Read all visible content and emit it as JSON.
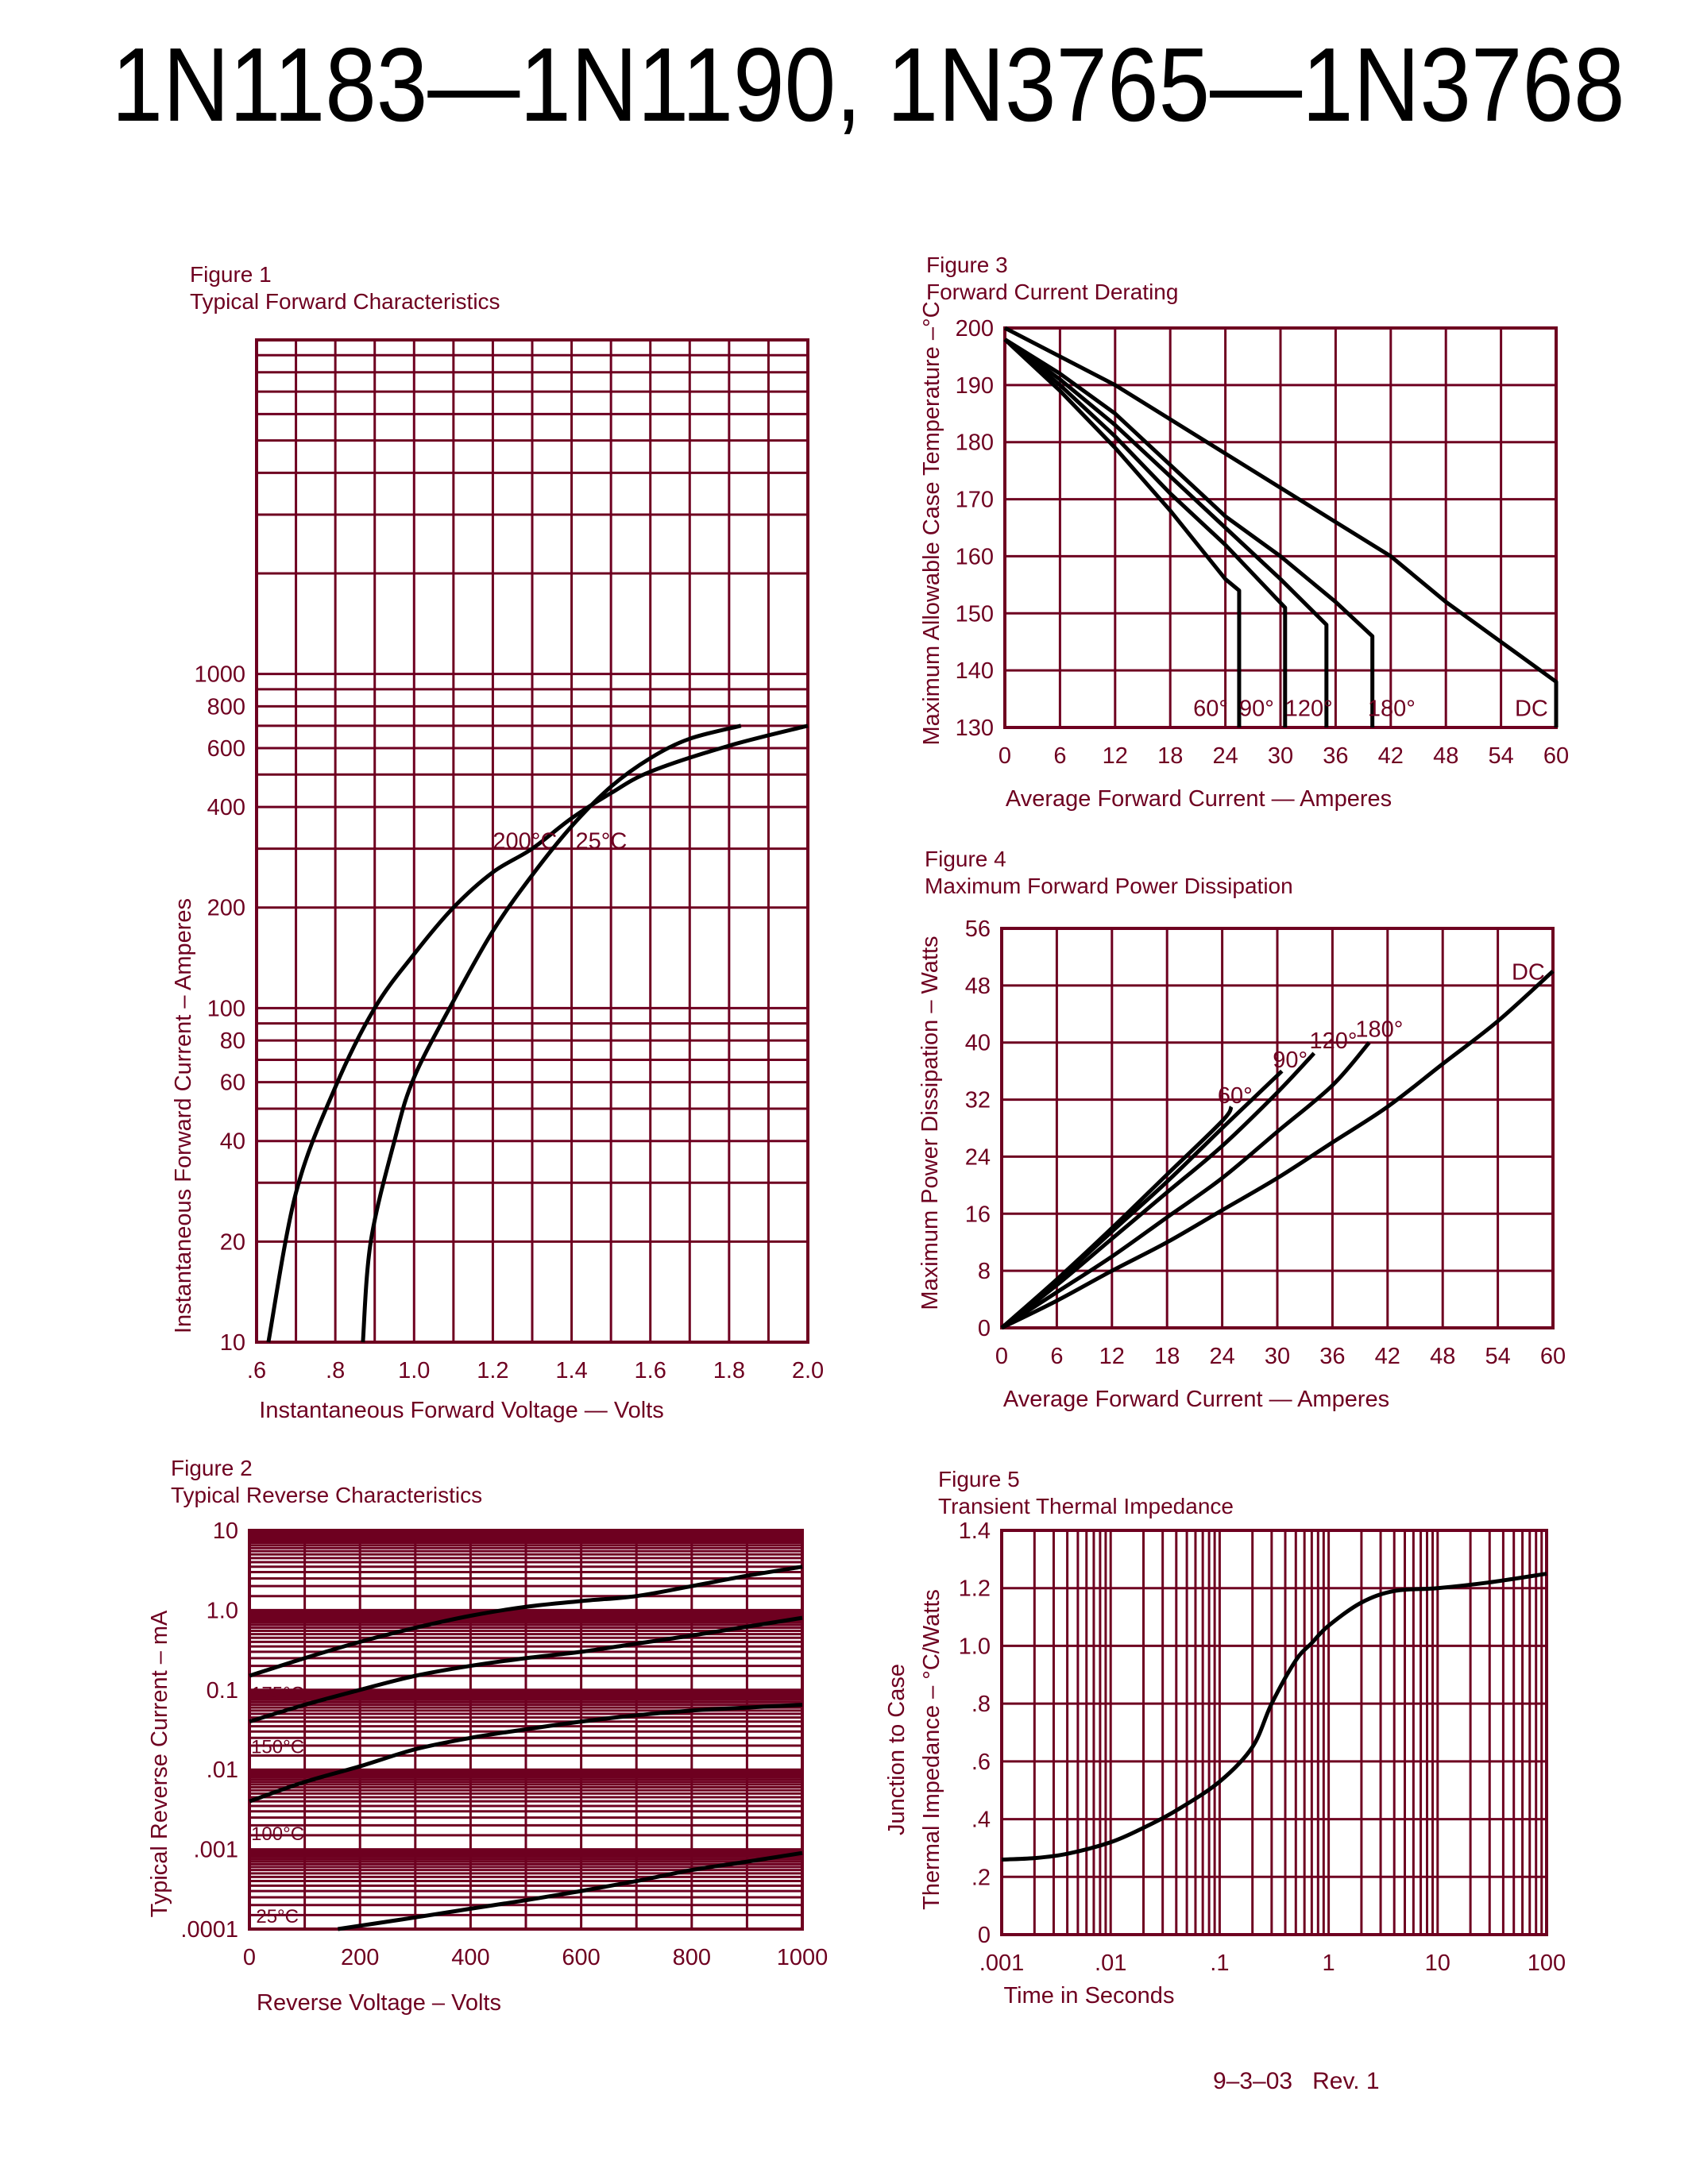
{
  "header": {
    "title": "1N1183—1N1190, 1N3765—1N3768"
  },
  "footer": {
    "revision": "9–3–03   Rev. 1"
  },
  "colors": {
    "grid": "#6e0020",
    "text": "#6e0020",
    "curve": "#000000"
  },
  "chart_data": [
    {
      "figure": "Figure 1",
      "title": "Typical Forward Characteristics",
      "type": "line",
      "xlabel": "Instantaneous Forward Voltage  —  Volts",
      "ylabel": [
        "Instantaneous Forward Current  –  Amperes"
      ],
      "xscale": "linear",
      "yscale": "log",
      "xlim": [
        0.6,
        2.0
      ],
      "ylim": [
        10,
        10000
      ],
      "grid": true,
      "xticks": [
        0.6,
        0.8,
        1.0,
        1.2,
        1.4,
        1.6,
        1.8,
        2.0
      ],
      "xtick_labels": [
        ".6",
        ".8",
        "1.0",
        "1.2",
        "1.4",
        "1.6",
        "1.8",
        "2.0"
      ],
      "yticks": [
        10,
        20,
        40,
        60,
        80,
        100,
        200,
        400,
        600,
        800,
        1000
      ],
      "ytick_labels": [
        "10",
        "20",
        "40",
        "60",
        "80",
        "100",
        "200",
        "400",
        "600",
        "800",
        "1000"
      ],
      "series": [
        {
          "name": "200°C",
          "x": [
            0.63,
            0.7,
            0.8,
            0.9,
            1.0,
            1.1,
            1.2,
            1.3,
            1.4,
            1.5,
            1.6,
            1.8,
            2.0
          ],
          "y": [
            10,
            28,
            58,
            100,
            145,
            200,
            255,
            300,
            370,
            440,
            510,
            610,
            700
          ],
          "label_at": [
            1.2,
            300
          ]
        },
        {
          "name": "25°C",
          "x": [
            0.87,
            0.89,
            0.95,
            1.0,
            1.1,
            1.2,
            1.3,
            1.4,
            1.5,
            1.6,
            1.7,
            1.83
          ],
          "y": [
            10,
            20,
            40,
            62,
            105,
            170,
            250,
            350,
            460,
            560,
            640,
            700
          ],
          "label_at": [
            1.41,
            300
          ]
        }
      ]
    },
    {
      "figure": "Figure 3",
      "title": "Forward Current Derating",
      "type": "line",
      "xlabel": "Average  Forward  Current  —  Amperes",
      "ylabel": [
        "Maximum Allowable Case Temperature –°C"
      ],
      "xscale": "linear",
      "yscale": "linear",
      "xlim": [
        0,
        60
      ],
      "ylim": [
        130,
        200
      ],
      "grid": true,
      "xticks": [
        0,
        6,
        12,
        18,
        24,
        30,
        36,
        42,
        48,
        54,
        60
      ],
      "xtick_labels": [
        "0",
        "6",
        "12",
        "18",
        "24",
        "30",
        "36",
        "42",
        "48",
        "54",
        "60"
      ],
      "yticks": [
        130,
        140,
        150,
        160,
        170,
        180,
        190,
        200
      ],
      "ytick_labels": [
        "130",
        "140",
        "150",
        "160",
        "170",
        "180",
        "190",
        "200"
      ],
      "series": [
        {
          "name": "60°",
          "x": [
            0,
            6,
            12,
            18,
            24,
            25.5,
            25.5
          ],
          "y": [
            198,
            189,
            179,
            168,
            156,
            154,
            130
          ],
          "label_at": [
            20.5,
            132
          ]
        },
        {
          "name": "90°",
          "x": [
            0,
            6,
            12,
            18,
            24,
            30.5,
            30.5
          ],
          "y": [
            198,
            190,
            181,
            171,
            162,
            151,
            130
          ],
          "label_at": [
            25.5,
            132
          ]
        },
        {
          "name": "120°",
          "x": [
            0,
            6,
            12,
            18,
            24,
            30,
            35,
            35
          ],
          "y": [
            198,
            191,
            183,
            174,
            165,
            156,
            148,
            130
          ],
          "label_at": [
            30.5,
            132
          ]
        },
        {
          "name": "180°",
          "x": [
            0,
            6,
            12,
            18,
            24,
            30,
            36,
            40,
            40
          ],
          "y": [
            198,
            192,
            185,
            176,
            167,
            160,
            152,
            146,
            130
          ],
          "label_at": [
            39.5,
            132
          ]
        },
        {
          "name": "DC",
          "x": [
            0,
            12,
            24,
            36,
            42,
            48,
            54,
            60,
            60
          ],
          "y": [
            200,
            190,
            178,
            166,
            160,
            152,
            145,
            138,
            130
          ],
          "label_at": [
            55.5,
            132
          ]
        }
      ]
    },
    {
      "figure": "Figure 4",
      "title": "Maximum Forward Power Dissipation",
      "type": "line",
      "xlabel": "Average  Forward  Current  —  Amperes",
      "ylabel": [
        "Maximum Power Dissipation  –  Watts"
      ],
      "xscale": "linear",
      "yscale": "linear",
      "xlim": [
        0,
        60
      ],
      "ylim": [
        0,
        56
      ],
      "grid": true,
      "xticks": [
        0,
        6,
        12,
        18,
        24,
        30,
        36,
        42,
        48,
        54,
        60
      ],
      "xtick_labels": [
        "0",
        "6",
        "12",
        "18",
        "24",
        "30",
        "36",
        "42",
        "48",
        "54",
        "60"
      ],
      "yticks": [
        0,
        8,
        16,
        24,
        32,
        40,
        48,
        56
      ],
      "ytick_labels": [
        "0",
        "8",
        "16",
        "24",
        "32",
        "40",
        "48",
        "56"
      ],
      "series": [
        {
          "name": "60°",
          "x": [
            0,
            6,
            12,
            18,
            24,
            25
          ],
          "y": [
            0,
            6.8,
            14,
            21.5,
            29,
            31
          ],
          "label_at": [
            23.5,
            31.5
          ]
        },
        {
          "name": "90°",
          "x": [
            0,
            6,
            12,
            18,
            24,
            30.5
          ],
          "y": [
            0,
            6.5,
            13.5,
            20.5,
            28,
            36
          ],
          "label_at": [
            29.5,
            36.5
          ]
        },
        {
          "name": "120°",
          "x": [
            0,
            6,
            12,
            18,
            24,
            30,
            34
          ],
          "y": [
            0,
            6,
            12.5,
            19,
            25.5,
            33,
            38.5
          ],
          "label_at": [
            33.5,
            39.2
          ]
        },
        {
          "name": "180°",
          "x": [
            0,
            6,
            12,
            18,
            24,
            30,
            36,
            40
          ],
          "y": [
            0,
            5,
            10,
            15.5,
            21,
            27.5,
            34,
            40
          ],
          "label_at": [
            38.5,
            40.8
          ]
        },
        {
          "name": "DC",
          "x": [
            0,
            6,
            12,
            18,
            24,
            30,
            36,
            42,
            48,
            54,
            60
          ],
          "y": [
            0,
            3.8,
            8,
            12,
            16.5,
            21,
            26,
            31,
            37,
            43,
            50
          ],
          "label_at": [
            55.5,
            48.8
          ]
        }
      ]
    },
    {
      "figure": "Figure 2",
      "title": "Typical Reverse Characteristics",
      "type": "line",
      "xlabel": "Reverse Voltage  –  Volts",
      "ylabel": [
        "Typical  Reverse  Current  –  mA"
      ],
      "xscale": "linear",
      "yscale": "log",
      "xlim": [
        0,
        1000
      ],
      "ylim": [
        0.0001,
        10
      ],
      "grid": true,
      "xticks": [
        0,
        200,
        400,
        600,
        800,
        1000
      ],
      "xtick_labels": [
        "0",
        "200",
        "400",
        "600",
        "800",
        "1000"
      ],
      "yticks": [
        0.0001,
        0.001,
        0.01,
        0.1,
        1,
        10
      ],
      "ytick_labels": [
        ".0001",
        ".001",
        ".01",
        "0.1",
        "1.0",
        "10"
      ],
      "series": [
        {
          "name": "175°C",
          "x": [
            0,
            100,
            200,
            300,
            400,
            500,
            600,
            700,
            800,
            900,
            1000
          ],
          "y": [
            0.15,
            0.25,
            0.4,
            0.6,
            0.85,
            1.1,
            1.3,
            1.5,
            2.0,
            2.7,
            3.5
          ],
          "label_at": [
            3,
            0.075
          ]
        },
        {
          "name": "150°C",
          "x": [
            0,
            100,
            200,
            300,
            400,
            500,
            600,
            700,
            800,
            900,
            1000
          ],
          "y": [
            0.04,
            0.065,
            0.1,
            0.15,
            0.2,
            0.25,
            0.3,
            0.38,
            0.48,
            0.62,
            0.8
          ],
          "label_at": [
            3,
            0.016
          ]
        },
        {
          "name": "100°C",
          "x": [
            0,
            100,
            200,
            300,
            400,
            500,
            600,
            700,
            800,
            900,
            1000
          ],
          "y": [
            0.004,
            0.007,
            0.011,
            0.018,
            0.025,
            0.032,
            0.04,
            0.048,
            0.055,
            0.06,
            0.065
          ],
          "label_at": [
            3,
            0.0013
          ]
        },
        {
          "name": "25°C",
          "x": [
            160,
            300,
            400,
            500,
            600,
            700,
            800,
            900,
            1000
          ],
          "y": [
            0.0001,
            0.00014,
            0.00018,
            0.00023,
            0.0003,
            0.0004,
            0.00055,
            0.0007,
            0.0009
          ],
          "label_at": [
            12,
            0.00012
          ]
        }
      ]
    },
    {
      "figure": "Figure 5",
      "title": "Transient Thermal Impedance",
      "type": "line",
      "xlabel": "Time in Seconds",
      "ylabel": [
        "Junction   to   Case",
        "Thermal  Impedance  –  °C/Watts"
      ],
      "xscale": "log",
      "yscale": "linear",
      "xlim": [
        0.001,
        100
      ],
      "ylim": [
        0,
        1.4
      ],
      "grid": true,
      "xticks": [
        0.001,
        0.01,
        0.1,
        1,
        10,
        100
      ],
      "xtick_labels": [
        ".001",
        ".01",
        ".1",
        "1",
        "10",
        "100"
      ],
      "yticks": [
        0,
        0.2,
        0.4,
        0.6,
        0.8,
        1.0,
        1.2,
        1.4
      ],
      "ytick_labels": [
        "0",
        ".2",
        ".4",
        ".6",
        ".8",
        "1.0",
        "1.2",
        "1.4"
      ],
      "series": [
        {
          "x": [
            0.001,
            0.002,
            0.004,
            0.01,
            0.02,
            0.04,
            0.1,
            0.2,
            0.3,
            0.5,
            0.7,
            1,
            2,
            4,
            10,
            30,
            100
          ],
          "y": [
            0.26,
            0.265,
            0.28,
            0.32,
            0.37,
            0.43,
            0.53,
            0.65,
            0.8,
            0.95,
            1.01,
            1.07,
            1.15,
            1.19,
            1.2,
            1.22,
            1.25
          ]
        }
      ]
    }
  ]
}
